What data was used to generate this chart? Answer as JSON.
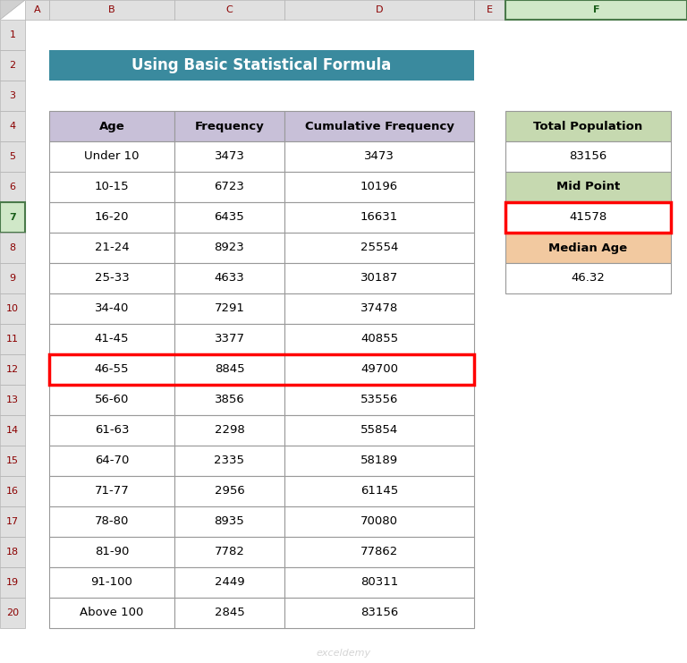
{
  "title": "Using Basic Statistical Formula",
  "title_bg": "#3a8a9e",
  "title_color": "#ffffff",
  "header_row": [
    "Age",
    "Frequency",
    "Cumulative Frequency"
  ],
  "header_bg": "#c8c0d8",
  "rows": [
    [
      "Under 10",
      "3473",
      "3473"
    ],
    [
      "10-15",
      "6723",
      "10196"
    ],
    [
      "16-20",
      "6435",
      "16631"
    ],
    [
      "21-24",
      "8923",
      "25554"
    ],
    [
      "25-33",
      "4633",
      "30187"
    ],
    [
      "34-40",
      "7291",
      "37478"
    ],
    [
      "41-45",
      "3377",
      "40855"
    ],
    [
      "46-55",
      "8845",
      "49700"
    ],
    [
      "56-60",
      "3856",
      "53556"
    ],
    [
      "61-63",
      "2298",
      "55854"
    ],
    [
      "64-70",
      "2335",
      "58189"
    ],
    [
      "71-77",
      "2956",
      "61145"
    ],
    [
      "78-80",
      "8935",
      "70080"
    ],
    [
      "81-90",
      "7782",
      "77862"
    ],
    [
      "91-100",
      "2449",
      "80311"
    ],
    [
      "Above 100",
      "2845",
      "83156"
    ]
  ],
  "highlighted_row_idx": 7,
  "highlight_color": "#ff0000",
  "side_labels": [
    "Total Population",
    "Mid Point",
    "Median Age"
  ],
  "side_values": [
    "83156",
    "41578",
    "46.32"
  ],
  "side_header_colors": [
    "#c6d9b0",
    "#c6d9b0",
    "#f2c9a0"
  ],
  "midpoint_value_row_highlight": true,
  "bg_color": "#ffffff",
  "cell_bg": "#ffffff",
  "grid_color": "#999999",
  "excel_header_bg": "#e0e0e0",
  "excel_header_selected_bg": "#d0e8c8",
  "excel_row_bg": "#e0e0e0",
  "excel_row_selected_bg": "#d0e8c8",
  "excel_col_letters": [
    "A",
    "B",
    "C",
    "D",
    "E",
    "F"
  ],
  "excel_row_numbers": [
    "1",
    "2",
    "3",
    "4",
    "5",
    "6",
    "7",
    "8",
    "9",
    "10",
    "11",
    "12",
    "13",
    "14",
    "15",
    "16",
    "17",
    "18",
    "19",
    "20"
  ],
  "selected_col": "F",
  "selected_row": "7",
  "watermark": "exceldemy"
}
